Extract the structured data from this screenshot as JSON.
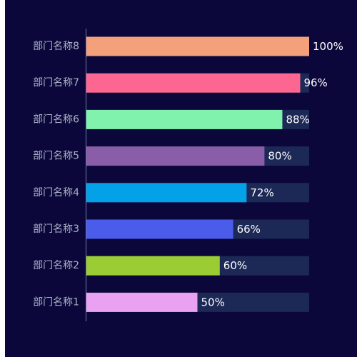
{
  "chart_data": {
    "type": "bar",
    "orientation": "horizontal",
    "categories": [
      "部门名称8",
      "部门名称7",
      "部门名称6",
      "部门名称5",
      "部门名称4",
      "部门名称3",
      "部门名称2",
      "部门名称1"
    ],
    "values": [
      100,
      96,
      88,
      80,
      72,
      66,
      60,
      50
    ],
    "value_labels": [
      "100%",
      "96%",
      "88%",
      "80%",
      "72%",
      "66%",
      "60%",
      "50%"
    ],
    "colors": [
      "#f4a07a",
      "#fd6690",
      "#80f2ad",
      "#8a5da8",
      "#03a1e8",
      "#4b5cea",
      "#9ccc34",
      "#eaa1f2"
    ],
    "background_track_color": "#1c2856",
    "xlim": [
      0,
      100
    ],
    "title": "",
    "xlabel": "",
    "ylabel": "",
    "grid": false,
    "legend": "none"
  },
  "theme": {
    "background": "#0c073a",
    "label_color": "#a9b2c8",
    "value_label_color": "#ffffff",
    "axis_color": "#6f7aa6"
  }
}
